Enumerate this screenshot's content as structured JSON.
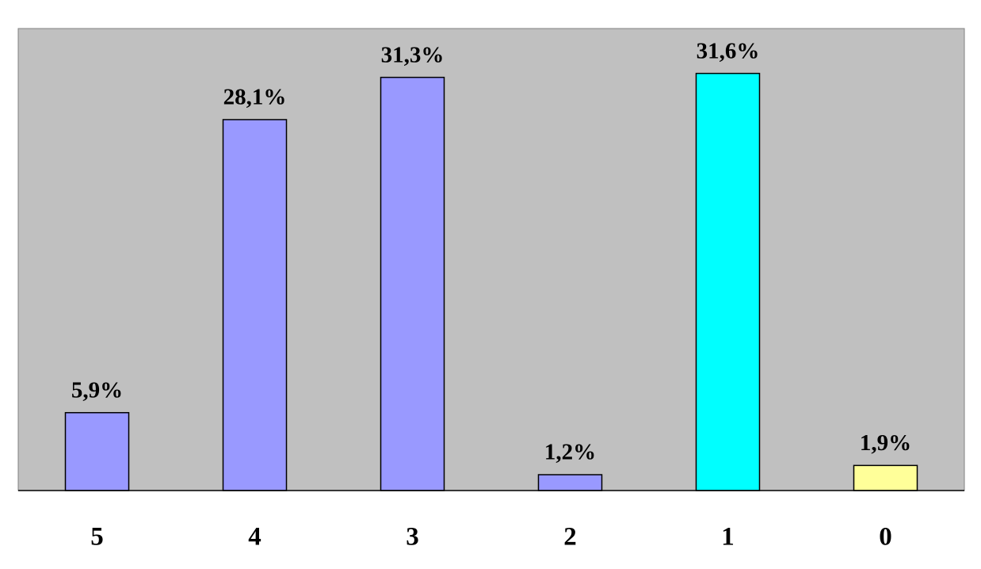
{
  "chart_data": {
    "type": "bar",
    "categories": [
      "5",
      "4",
      "3",
      "2",
      "1",
      "0"
    ],
    "values": [
      5.9,
      28.1,
      31.3,
      1.2,
      31.6,
      1.9
    ],
    "value_labels": [
      "5,9%",
      "28,1%",
      "31,3%",
      "1,2%",
      "31,6%",
      "1,9%"
    ],
    "colors": [
      "#9999ff",
      "#9999ff",
      "#9999ff",
      "#9999ff",
      "#00ffff",
      "#ffff99"
    ],
    "ylim": [
      0,
      35
    ]
  }
}
